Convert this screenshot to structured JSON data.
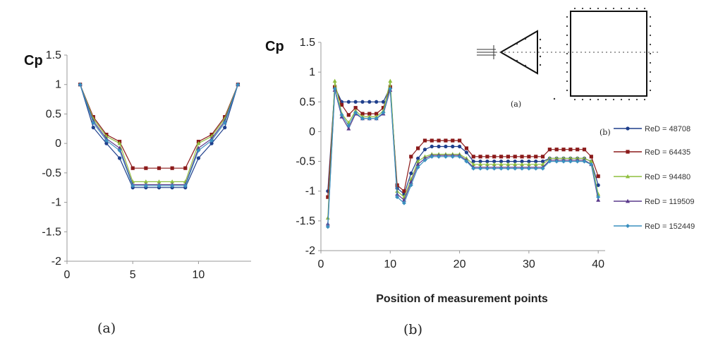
{
  "colors": [
    "#1f3f8c",
    "#8b1a1a",
    "#8fbf3f",
    "#5b3a8c",
    "#3a8fbf"
  ],
  "chart_data": [
    {
      "type": "line",
      "ylabel": "Cp",
      "caption": "(a)",
      "xlim": [
        0,
        14
      ],
      "ylim": [
        -2,
        1.5
      ],
      "xticks": [
        "0",
        "5",
        "10"
      ],
      "xtick_values": [
        0,
        5,
        10
      ],
      "yticks": [
        "1.5",
        "1",
        "0.5",
        "0",
        "-0.5",
        "-1",
        "-1.5",
        "-2"
      ],
      "ytick_values": [
        1.5,
        1,
        0.5,
        0,
        -0.5,
        -1,
        -1.5,
        -2
      ],
      "x": [
        1,
        2,
        3,
        4,
        5,
        6,
        7,
        8,
        9,
        10,
        11,
        12,
        13
      ],
      "series": [
        {
          "values": [
            1.0,
            0.27,
            0.0,
            -0.25,
            -0.75,
            -0.75,
            -0.75,
            -0.75,
            -0.75,
            -0.25,
            0.0,
            0.27,
            1.0
          ]
        },
        {
          "values": [
            1.0,
            0.45,
            0.15,
            0.03,
            -0.42,
            -0.42,
            -0.42,
            -0.42,
            -0.42,
            0.03,
            0.15,
            0.45,
            1.0
          ]
        },
        {
          "values": [
            1.0,
            0.42,
            0.12,
            0.0,
            -0.65,
            -0.65,
            -0.65,
            -0.65,
            -0.65,
            0.0,
            0.12,
            0.42,
            1.0
          ]
        },
        {
          "values": [
            1.0,
            0.38,
            0.08,
            -0.08,
            -0.7,
            -0.7,
            -0.7,
            -0.7,
            -0.7,
            -0.08,
            0.08,
            0.38,
            1.0
          ]
        },
        {
          "values": [
            1.0,
            0.35,
            0.05,
            -0.12,
            -0.72,
            -0.72,
            -0.72,
            -0.72,
            -0.72,
            -0.12,
            0.05,
            0.35,
            1.0
          ]
        }
      ]
    },
    {
      "type": "line",
      "ylabel": "Cp",
      "xlabel": "Position of measurement points",
      "caption": "(b)",
      "xlim": [
        0,
        41
      ],
      "ylim": [
        -2,
        1.5
      ],
      "xticks": [
        "0",
        "10",
        "20",
        "30",
        "40"
      ],
      "xtick_values": [
        0,
        10,
        20,
        30,
        40
      ],
      "yticks": [
        "1.5",
        "1",
        "0.5",
        "0",
        "-0.5",
        "-1",
        "-1.5",
        "-2"
      ],
      "ytick_values": [
        1.5,
        1,
        0.5,
        0,
        -0.5,
        -1,
        -1.5,
        -2
      ],
      "x": [
        1,
        2,
        3,
        4,
        5,
        6,
        7,
        8,
        9,
        10,
        11,
        12,
        13,
        14,
        15,
        16,
        17,
        18,
        19,
        20,
        21,
        22,
        23,
        24,
        25,
        26,
        27,
        28,
        29,
        30,
        31,
        32,
        33,
        34,
        35,
        36,
        37,
        38,
        39,
        40
      ],
      "legend_position": "right",
      "series": [
        {
          "name": "ReD = 48708",
          "values": [
            -1.0,
            0.75,
            0.5,
            0.5,
            0.5,
            0.5,
            0.5,
            0.5,
            0.5,
            0.75,
            -0.95,
            -1.05,
            -0.7,
            -0.45,
            -0.3,
            -0.25,
            -0.25,
            -0.25,
            -0.25,
            -0.25,
            -0.35,
            -0.5,
            -0.5,
            -0.5,
            -0.5,
            -0.5,
            -0.5,
            -0.5,
            -0.5,
            -0.5,
            -0.5,
            -0.5,
            -0.45,
            -0.45,
            -0.45,
            -0.45,
            -0.45,
            -0.45,
            -0.5,
            -0.9
          ]
        },
        {
          "name": "ReD = 64435",
          "values": [
            -1.1,
            0.75,
            0.45,
            0.28,
            0.4,
            0.3,
            0.3,
            0.3,
            0.4,
            0.75,
            -0.9,
            -1.0,
            -0.42,
            -0.28,
            -0.15,
            -0.15,
            -0.15,
            -0.15,
            -0.15,
            -0.15,
            -0.28,
            -0.42,
            -0.42,
            -0.42,
            -0.42,
            -0.42,
            -0.42,
            -0.42,
            -0.42,
            -0.42,
            -0.42,
            -0.42,
            -0.3,
            -0.3,
            -0.3,
            -0.3,
            -0.3,
            -0.3,
            -0.42,
            -0.75
          ]
        },
        {
          "name": "ReD = 94480",
          "values": [
            -1.45,
            0.85,
            0.3,
            0.15,
            0.35,
            0.25,
            0.25,
            0.25,
            0.35,
            0.85,
            -1.0,
            -1.1,
            -0.8,
            -0.5,
            -0.42,
            -0.38,
            -0.38,
            -0.38,
            -0.38,
            -0.38,
            -0.45,
            -0.55,
            -0.55,
            -0.55,
            -0.55,
            -0.55,
            -0.55,
            -0.55,
            -0.55,
            -0.55,
            -0.55,
            -0.55,
            -0.45,
            -0.45,
            -0.45,
            -0.45,
            -0.45,
            -0.45,
            -0.5,
            -1.05
          ]
        },
        {
          "name": "ReD = 119509",
          "values": [
            -1.55,
            0.7,
            0.25,
            0.05,
            0.3,
            0.22,
            0.22,
            0.22,
            0.3,
            0.7,
            -1.05,
            -1.15,
            -0.85,
            -0.55,
            -0.45,
            -0.4,
            -0.4,
            -0.4,
            -0.4,
            -0.4,
            -0.48,
            -0.6,
            -0.6,
            -0.6,
            -0.6,
            -0.6,
            -0.6,
            -0.6,
            -0.6,
            -0.6,
            -0.6,
            -0.6,
            -0.48,
            -0.48,
            -0.48,
            -0.48,
            -0.48,
            -0.48,
            -0.55,
            -1.15
          ]
        },
        {
          "name": "ReD = 152449",
          "values": [
            -1.6,
            0.72,
            0.28,
            0.1,
            0.32,
            0.22,
            0.22,
            0.22,
            0.32,
            0.72,
            -1.1,
            -1.2,
            -0.9,
            -0.6,
            -0.48,
            -0.42,
            -0.42,
            -0.42,
            -0.42,
            -0.42,
            -0.5,
            -0.62,
            -0.62,
            -0.62,
            -0.62,
            -0.62,
            -0.62,
            -0.62,
            -0.62,
            -0.62,
            -0.62,
            -0.62,
            -0.5,
            -0.5,
            -0.5,
            -0.5,
            -0.5,
            -0.5,
            -0.55,
            -1.1
          ]
        }
      ]
    }
  ],
  "inset": {
    "left_caption": "(a)",
    "right_caption": "(b)"
  }
}
